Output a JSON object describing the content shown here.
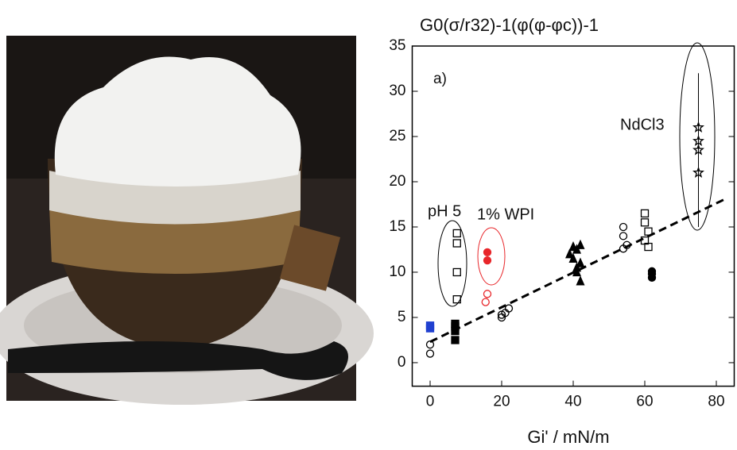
{
  "chart_data": {
    "type": "scatter",
    "title": "G0(σ/r32)-1(φ(φ-φc))-1",
    "x_label": "Gi' / mN/m",
    "annotations": {
      "panel": "a)",
      "ph": "pH 5",
      "wpi": "1% WPI",
      "salt": "NdCl3"
    },
    "annotation_colors": {
      "wpi": "#e8262a"
    },
    "xlim": [
      -5,
      85
    ],
    "xticks": [
      0,
      20,
      40,
      60,
      80
    ],
    "ylim": [
      -2.6,
      35
    ],
    "yticks": [
      0,
      5,
      10,
      15,
      20,
      25,
      30,
      35
    ],
    "series": [
      {
        "color": "#2040d0",
        "marker": "square",
        "filled": true,
        "x": [
          0,
          0
        ],
        "values": [
          3.8,
          4.1
        ]
      },
      {
        "color": "#000000",
        "marker": "circle",
        "filled": false,
        "x": [
          0,
          0
        ],
        "values": [
          1,
          2
        ]
      },
      {
        "color": "#000000",
        "marker": "square",
        "filled": true,
        "x": [
          7,
          7,
          7,
          7
        ],
        "values": [
          2.5,
          3.5,
          4,
          4.3
        ]
      },
      {
        "color": "#000000",
        "marker": "square",
        "filled": false,
        "x": [
          7.5,
          7.5,
          7.5,
          7.5
        ],
        "values": [
          14.3,
          13.2,
          10,
          7
        ]
      },
      {
        "color": "#e8262a",
        "marker": "circle",
        "filled": true,
        "x": [
          16,
          16
        ],
        "values": [
          12.2,
          11.3
        ]
      },
      {
        "color": "#e8262a",
        "marker": "circle",
        "filled": false,
        "x": [
          15.5,
          16
        ],
        "values": [
          6.7,
          7.6
        ]
      },
      {
        "color": "#000000",
        "marker": "circle",
        "filled": false,
        "x": [
          20,
          21,
          22,
          20
        ],
        "values": [
          5,
          5.5,
          6,
          5.3
        ]
      },
      {
        "color": "#000000",
        "marker": "triangle",
        "filled": true,
        "x": [
          39,
          40,
          41,
          41,
          42,
          42,
          42,
          41,
          40
        ],
        "values": [
          12,
          11.5,
          10,
          12.5,
          13,
          11,
          9,
          10.5,
          12.8
        ]
      },
      {
        "color": "#000000",
        "marker": "circle",
        "filled": false,
        "x": [
          54,
          54,
          55,
          54
        ],
        "values": [
          15,
          14,
          13,
          12.6
        ]
      },
      {
        "color": "#000000",
        "marker": "square",
        "filled": false,
        "x": [
          60,
          60,
          61,
          60,
          61
        ],
        "values": [
          16.5,
          15.5,
          14.5,
          13.5,
          12.8
        ]
      },
      {
        "color": "#000000",
        "marker": "circle",
        "filled": true,
        "x": [
          62,
          62,
          62
        ],
        "values": [
          9.4,
          9.8,
          10.1
        ]
      },
      {
        "color": "#000000",
        "marker": "star",
        "filled": false,
        "x": [
          75,
          75,
          75,
          75
        ],
        "values": [
          21,
          23.5,
          24.5,
          26
        ],
        "errors": [
          6,
          6,
          6,
          6
        ]
      }
    ],
    "fit": {
      "color": "#000000",
      "x": [
        0,
        82
      ],
      "values": [
        2.3,
        18
      ]
    }
  }
}
